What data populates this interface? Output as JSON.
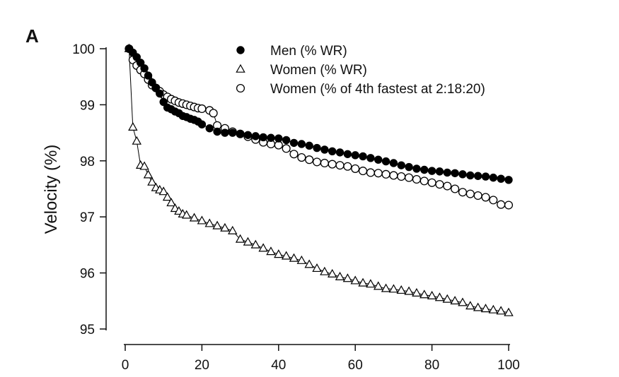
{
  "chart_data": {
    "type": "scatter",
    "panel_label": "A",
    "ylabel": "Velocity (%)",
    "xlabel": "",
    "xlim": [
      0,
      100
    ],
    "ylim": [
      95,
      100
    ],
    "xticks": [
      0,
      20,
      40,
      60,
      80,
      100
    ],
    "yticks": [
      95,
      96,
      97,
      98,
      99,
      100
    ],
    "legend_placement": "top-right",
    "grid": false,
    "series": [
      {
        "name": "Men (% WR)",
        "marker": "filled-circle",
        "color": "#000000",
        "points": [
          [
            1,
            100
          ],
          [
            2,
            99.93
          ],
          [
            3,
            99.85
          ],
          [
            4,
            99.75
          ],
          [
            5,
            99.65
          ],
          [
            6,
            99.52
          ],
          [
            7,
            99.4
          ],
          [
            8,
            99.3
          ],
          [
            9,
            99.2
          ],
          [
            10,
            99.05
          ],
          [
            11,
            98.95
          ],
          [
            12,
            98.92
          ],
          [
            13,
            98.88
          ],
          [
            14,
            98.85
          ],
          [
            15,
            98.8
          ],
          [
            16,
            98.78
          ],
          [
            17,
            98.75
          ],
          [
            18,
            98.73
          ],
          [
            19,
            98.7
          ],
          [
            20,
            98.65
          ],
          [
            22,
            98.58
          ],
          [
            24,
            98.52
          ],
          [
            26,
            98.5
          ],
          [
            28,
            98.5
          ],
          [
            30,
            98.48
          ],
          [
            32,
            98.46
          ],
          [
            34,
            98.44
          ],
          [
            36,
            98.42
          ],
          [
            38,
            98.41
          ],
          [
            40,
            98.4
          ],
          [
            42,
            98.37
          ],
          [
            44,
            98.32
          ],
          [
            46,
            98.3
          ],
          [
            48,
            98.27
          ],
          [
            50,
            98.23
          ],
          [
            52,
            98.2
          ],
          [
            54,
            98.17
          ],
          [
            56,
            98.15
          ],
          [
            58,
            98.12
          ],
          [
            60,
            98.1
          ],
          [
            62,
            98.08
          ],
          [
            64,
            98.05
          ],
          [
            66,
            98.02
          ],
          [
            68,
            97.99
          ],
          [
            70,
            97.96
          ],
          [
            72,
            97.92
          ],
          [
            74,
            97.89
          ],
          [
            76,
            97.86
          ],
          [
            78,
            97.84
          ],
          [
            80,
            97.82
          ],
          [
            82,
            97.81
          ],
          [
            84,
            97.79
          ],
          [
            86,
            97.78
          ],
          [
            88,
            97.76
          ],
          [
            90,
            97.74
          ],
          [
            92,
            97.73
          ],
          [
            94,
            97.72
          ],
          [
            96,
            97.7
          ],
          [
            98,
            97.68
          ],
          [
            100,
            97.66
          ]
        ]
      },
      {
        "name": "Women (% WR)",
        "marker": "open-triangle",
        "color": "#000000",
        "points": [
          [
            1,
            100
          ],
          [
            2,
            98.6
          ],
          [
            3,
            98.35
          ],
          [
            4,
            97.92
          ],
          [
            5,
            97.9
          ],
          [
            6,
            97.75
          ],
          [
            7,
            97.62
          ],
          [
            8,
            97.52
          ],
          [
            9,
            97.48
          ],
          [
            10,
            97.45
          ],
          [
            11,
            97.35
          ],
          [
            12,
            97.25
          ],
          [
            13,
            97.15
          ],
          [
            14,
            97.1
          ],
          [
            15,
            97.05
          ],
          [
            16,
            97.03
          ],
          [
            18,
            96.98
          ],
          [
            20,
            96.93
          ],
          [
            22,
            96.88
          ],
          [
            24,
            96.84
          ],
          [
            26,
            96.8
          ],
          [
            28,
            96.75
          ],
          [
            30,
            96.6
          ],
          [
            32,
            96.55
          ],
          [
            34,
            96.5
          ],
          [
            36,
            96.44
          ],
          [
            38,
            96.38
          ],
          [
            40,
            96.33
          ],
          [
            42,
            96.3
          ],
          [
            44,
            96.26
          ],
          [
            46,
            96.22
          ],
          [
            48,
            96.15
          ],
          [
            50,
            96.08
          ],
          [
            52,
            96.02
          ],
          [
            54,
            95.98
          ],
          [
            56,
            95.93
          ],
          [
            58,
            95.9
          ],
          [
            60,
            95.86
          ],
          [
            62,
            95.82
          ],
          [
            64,
            95.8
          ],
          [
            66,
            95.76
          ],
          [
            68,
            95.72
          ],
          [
            70,
            95.71
          ],
          [
            72,
            95.69
          ],
          [
            74,
            95.67
          ],
          [
            76,
            95.64
          ],
          [
            78,
            95.61
          ],
          [
            80,
            95.59
          ],
          [
            82,
            95.56
          ],
          [
            84,
            95.53
          ],
          [
            86,
            95.5
          ],
          [
            88,
            95.47
          ],
          [
            90,
            95.41
          ],
          [
            92,
            95.38
          ],
          [
            94,
            95.36
          ],
          [
            96,
            95.34
          ],
          [
            98,
            95.32
          ],
          [
            100,
            95.29
          ]
        ]
      },
      {
        "name": "Women (% of 4th fastest at 2:18:20)",
        "marker": "open-circle",
        "color": "#000000",
        "points": [
          [
            1,
            100
          ],
          [
            2,
            99.8
          ],
          [
            3,
            99.7
          ],
          [
            4,
            99.62
          ],
          [
            5,
            99.55
          ],
          [
            6,
            99.45
          ],
          [
            7,
            99.35
          ],
          [
            8,
            99.3
          ],
          [
            9,
            99.24
          ],
          [
            10,
            99.18
          ],
          [
            11,
            99.14
          ],
          [
            12,
            99.1
          ],
          [
            13,
            99.07
          ],
          [
            14,
            99.04
          ],
          [
            15,
            99.02
          ],
          [
            16,
            99.0
          ],
          [
            17,
            98.98
          ],
          [
            18,
            98.96
          ],
          [
            19,
            98.94
          ],
          [
            20,
            98.93
          ],
          [
            22,
            98.9
          ],
          [
            23,
            98.85
          ],
          [
            24,
            98.63
          ],
          [
            26,
            98.58
          ],
          [
            28,
            98.52
          ],
          [
            30,
            98.48
          ],
          [
            32,
            98.43
          ],
          [
            34,
            98.38
          ],
          [
            36,
            98.33
          ],
          [
            38,
            98.3
          ],
          [
            40,
            98.28
          ],
          [
            42,
            98.22
          ],
          [
            44,
            98.12
          ],
          [
            46,
            98.06
          ],
          [
            48,
            98.02
          ],
          [
            50,
            97.98
          ],
          [
            52,
            97.96
          ],
          [
            54,
            97.94
          ],
          [
            56,
            97.92
          ],
          [
            58,
            97.9
          ],
          [
            60,
            97.86
          ],
          [
            62,
            97.82
          ],
          [
            64,
            97.79
          ],
          [
            66,
            97.78
          ],
          [
            68,
            97.76
          ],
          [
            70,
            97.74
          ],
          [
            72,
            97.72
          ],
          [
            74,
            97.7
          ],
          [
            76,
            97.67
          ],
          [
            78,
            97.64
          ],
          [
            80,
            97.61
          ],
          [
            82,
            97.58
          ],
          [
            84,
            97.55
          ],
          [
            86,
            97.5
          ],
          [
            88,
            97.44
          ],
          [
            90,
            97.41
          ],
          [
            92,
            97.38
          ],
          [
            94,
            97.35
          ],
          [
            96,
            97.3
          ],
          [
            98,
            97.22
          ],
          [
            100,
            97.21
          ]
        ]
      }
    ]
  }
}
